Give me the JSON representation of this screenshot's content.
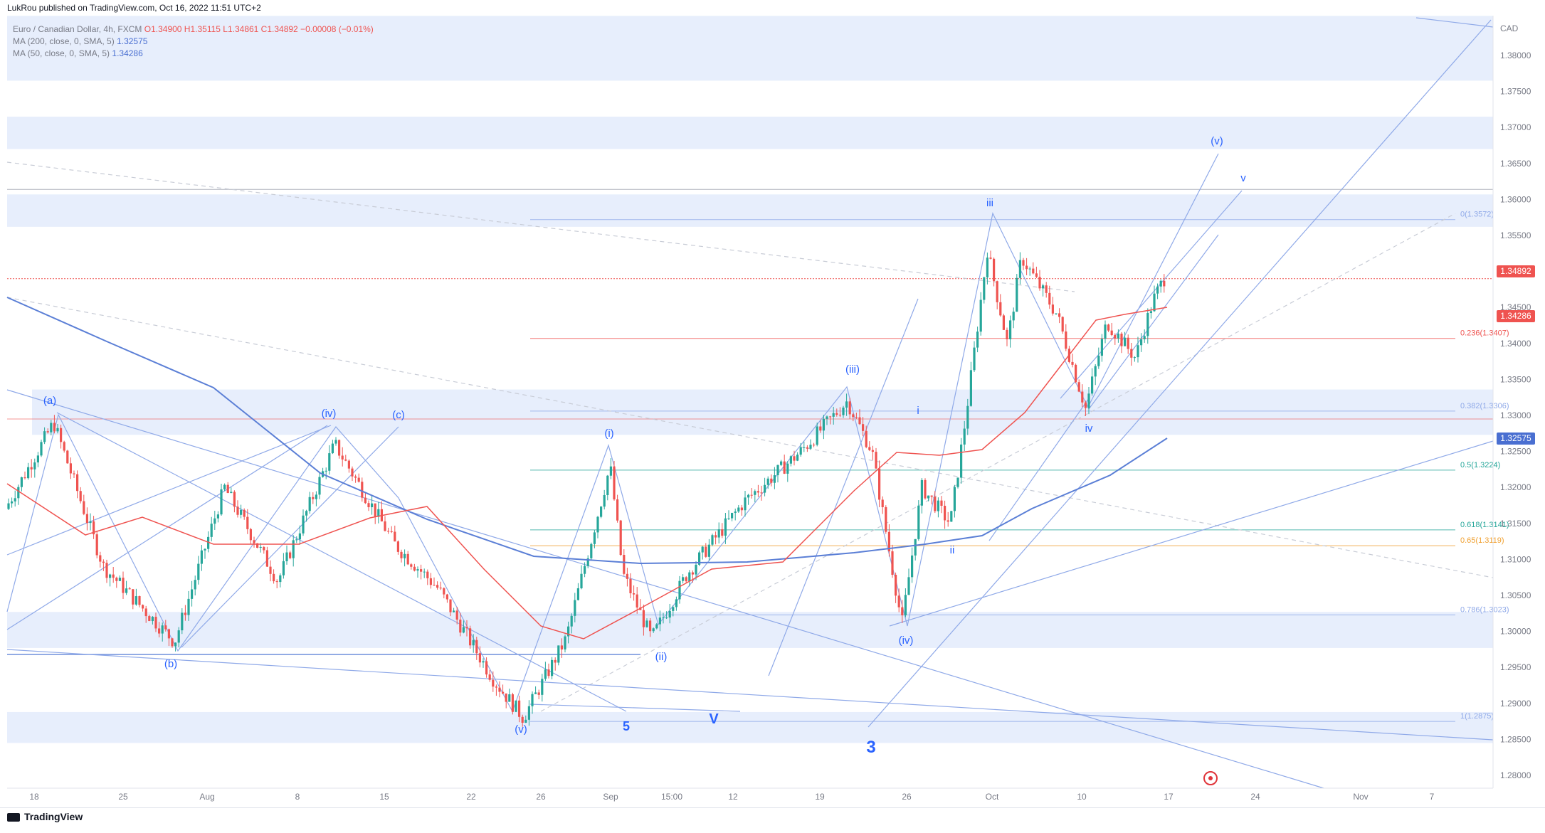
{
  "header": {
    "published": "LukRou published on TradingView.com, Oct 16, 2022 11:51 UTC+2"
  },
  "legend": {
    "symbol": "Euro / Canadian Dollar, 4h, FXCM",
    "ohlc": "O1.34900 H1.35115 L1.34861 C1.34892 −0.00008 (−0.01%)",
    "ma200": "MA (200, close, 0, SMA, 5)",
    "ma200_value": "1.32575",
    "ma50": "MA (50, close, 0, SMA, 5)",
    "ma50_value": "1.34286"
  },
  "axis": {
    "currency": "CAD",
    "price_ticks": [
      "1.38000",
      "1.37500",
      "1.37000",
      "1.36500",
      "1.36000",
      "1.35500",
      "1.35000",
      "1.34500",
      "1.34000",
      "1.33500",
      "1.33000",
      "1.32500",
      "1.32000",
      "1.31500",
      "1.31000",
      "1.30500",
      "1.30000",
      "1.29500",
      "1.29000",
      "1.28500",
      "1.28000"
    ],
    "time_ticks": [
      "18",
      "25",
      "Aug",
      "8",
      "15",
      "22",
      "26",
      "Sep",
      "15:00",
      "12",
      "19",
      "26",
      "Oct",
      "10",
      "17",
      "24",
      "Nov",
      "7"
    ]
  },
  "price_tags": {
    "last": "1.34892",
    "ma50": "1.34286",
    "ma200": "1.32575"
  },
  "fib_labels": [
    "0(1.3572)",
    "0.236(1.3407)",
    "0.382(1.3306)",
    "0.5(1.3224)",
    "0.618(1.3141)",
    "0.65(1.3119)",
    "0.786(1.3023)",
    "1(1.2875)"
  ],
  "wave_labels": {
    "a": "(a)",
    "b": "(b)",
    "c": "(c)",
    "iv_small": "(iv)",
    "v_small": "(v)",
    "five": "5",
    "big_v": "V",
    "three": "3",
    "i_paren": "(i)",
    "ii_paren": "(ii)",
    "iii_paren": "(iii)",
    "iv_paren": "(iv)",
    "v_paren": "(v)",
    "i": "i",
    "ii": "ii",
    "iii": "iii",
    "iv": "iv",
    "v": "v"
  },
  "footer": {
    "brand": "TradingView"
  },
  "colors": {
    "up": "#26a69a",
    "down": "#ef5350",
    "ma200": "#5b7fd6",
    "ma50": "#ef5350",
    "wave_label": "#2962ff",
    "zone": "#e7eefc",
    "line": "#8fa9e8"
  },
  "chart_data": {
    "type": "candlestick",
    "title": "Euro / Canadian Dollar, 4h, FXCM",
    "ylim": [
      1.2755,
      1.3855
    ],
    "series": [
      {
        "name": "EURCAD",
        "x": [
          "Jul 18",
          "Jul 25",
          "Aug 1",
          "Aug 8",
          "Aug 15",
          "Aug 22",
          "Aug 26",
          "Sep 1",
          "Sep 7",
          "Sep 12",
          "Sep 19",
          "Sep 26",
          "Oct 3",
          "Oct 10",
          "Oct 14"
        ],
        "values": [
          1.317,
          1.314,
          1.318,
          1.316,
          1.312,
          1.296,
          1.29,
          1.315,
          1.3,
          1.312,
          1.33,
          1.315,
          1.35,
          1.34,
          1.3489
        ]
      },
      {
        "name": "MA (200, close, 0, SMA, 5)",
        "values": [
          1.346,
          1.336,
          1.326,
          1.32,
          1.314,
          1.31,
          1.308,
          1.307,
          1.308,
          1.309,
          1.31,
          1.311,
          1.313,
          1.319,
          1.3257
        ]
      },
      {
        "name": "MA (50, close, 0, SMA, 5)",
        "values": [
          1.314,
          1.315,
          1.313,
          1.312,
          1.312,
          1.302,
          1.296,
          1.3,
          1.305,
          1.308,
          1.315,
          1.325,
          1.329,
          1.34,
          1.3429
        ]
      }
    ]
  }
}
